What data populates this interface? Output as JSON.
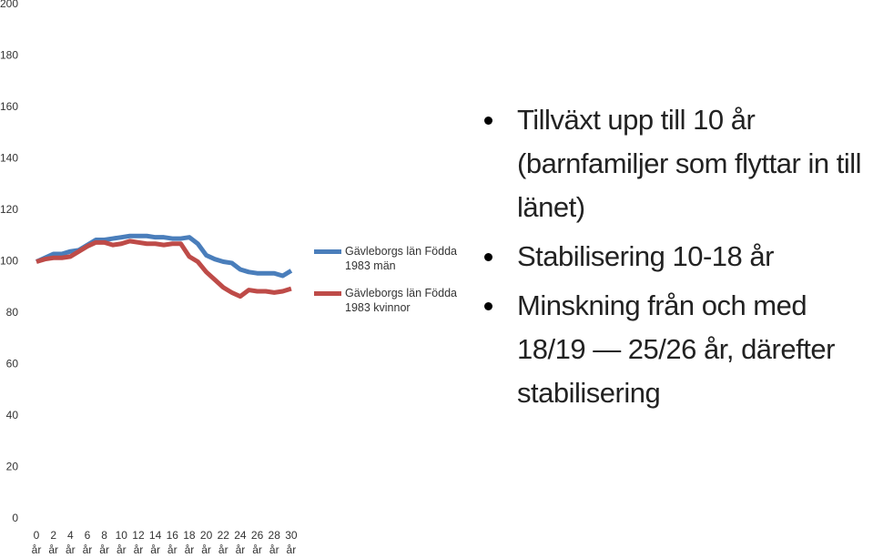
{
  "chart_data": {
    "type": "line",
    "categories": [
      "0 år",
      null,
      "2 år",
      null,
      "4 år",
      null,
      "6 år",
      null,
      "8 år",
      null,
      "10 år",
      null,
      "12 år",
      null,
      "14 år",
      null,
      "16 år",
      null,
      "18 år",
      null,
      "20 år",
      null,
      "22 år",
      null,
      "24 år",
      null,
      "26 år",
      null,
      "28 år",
      null,
      "30 år"
    ],
    "series": [
      {
        "name": "Gävleborgs län Födda 1983 män",
        "color": "#4a7ebb",
        "values": [
          100,
          101.5,
          103,
          103,
          104,
          104.5,
          106.5,
          108.5,
          108.5,
          109,
          109.5,
          110,
          110,
          110,
          109.5,
          109.5,
          109,
          109,
          109.5,
          107,
          102.5,
          101,
          100,
          99.5,
          97,
          96,
          95.5,
          95.5,
          95.5,
          94.5,
          96.5
        ]
      },
      {
        "name": "Gävleborgs län Födda 1983 kvinnor",
        "color": "#be4b48",
        "values": [
          100,
          101,
          101.5,
          101.5,
          102,
          104,
          106,
          107.5,
          107.5,
          106.5,
          107,
          108,
          107.5,
          107,
          107,
          106.5,
          107,
          107,
          102,
          100,
          96,
          93,
          90,
          88,
          86.5,
          89,
          88.5,
          88.5,
          88,
          88.5,
          89.5
        ]
      }
    ],
    "ylim": [
      0,
      200
    ],
    "yticks": [
      0,
      20,
      40,
      60,
      80,
      100,
      120,
      140,
      160,
      180,
      200
    ],
    "grid": false,
    "legend": "right"
  },
  "notes": [
    "Tillväxt upp till 10 år (barnfamiljer som flyttar in till länet)",
    "Stabilisering 10-18 år",
    "Minskning från och med 18/19 — 25/26 år, därefter stabilisering"
  ]
}
